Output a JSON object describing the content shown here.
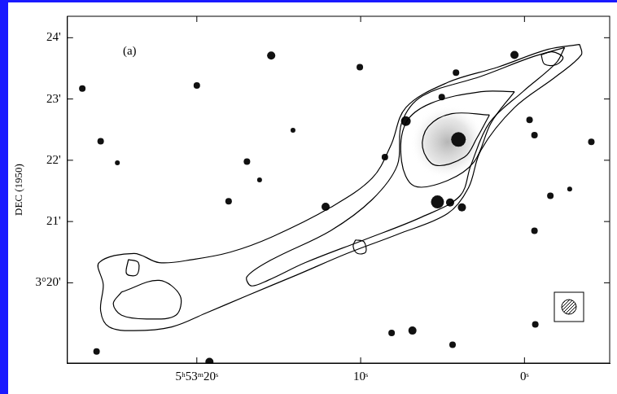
{
  "chart_data": {
    "type": "contour",
    "ylabel": "DEC (1950)",
    "xlim": [
      27.9,
      -5.2
    ],
    "ylim": [
      18.69,
      24.35
    ],
    "xticks": [
      {
        "value": 20,
        "label": "5ʰ53ᵐ20ˢ"
      },
      {
        "value": 10,
        "label": "10ˢ"
      },
      {
        "value": 0,
        "label": "0ˢ"
      }
    ],
    "yticks": [
      {
        "value": 20,
        "label": "3°20'"
      },
      {
        "value": 21,
        "label": "21'"
      },
      {
        "value": 22,
        "label": "22'"
      },
      {
        "value": 23,
        "label": "23'"
      },
      {
        "value": 24,
        "label": "24'"
      }
    ],
    "grid": false,
    "color": "#000000",
    "contours": [
      {
        "x": [
          -3.37,
          -3.47,
          -1.94,
          0.61,
          2.65,
          3.42,
          4.69,
          7.76,
          10.82,
          13.88,
          16.94,
          19.49,
          21.53,
          23.83,
          25.36,
          25.87,
          25.71,
          25.97,
          23.83,
          22.3,
          20.26,
          17.96,
          15.41,
          11.84,
          9.29,
          8.16,
          7.24,
          4.69,
          1.63,
          -1.43
        ],
        "y": [
          23.89,
          23.72,
          23.37,
          22.86,
          22.17,
          21.55,
          21.13,
          20.79,
          20.48,
          20.13,
          19.79,
          19.5,
          19.28,
          19.22,
          19.28,
          19.54,
          19.97,
          20.33,
          20.48,
          20.33,
          20.38,
          20.5,
          20.75,
          21.23,
          21.71,
          22.24,
          22.86,
          23.27,
          23.52,
          23.81
        ]
      },
      {
        "x": [
          -2.45,
          -1.94,
          0.1,
          2.14,
          3.27,
          3.93,
          6.22,
          9.8,
          13.37,
          15.66,
          16.68,
          16.94,
          15.41,
          11.84,
          9.29,
          7.76,
          7.5,
          6.22,
          2.65,
          -0.41
        ],
        "y": [
          23.84,
          23.59,
          23.12,
          22.61,
          21.92,
          21.42,
          21.08,
          20.7,
          20.33,
          20.04,
          19.95,
          20.1,
          20.38,
          20.85,
          21.36,
          21.92,
          22.61,
          23.05,
          23.37,
          23.68
        ]
      },
      {
        "x": [
          0.61,
          2.04,
          3.06,
          4.69,
          6.73,
          7.5,
          7.24,
          5.71,
          2.65
        ],
        "y": [
          23.12,
          22.61,
          21.98,
          21.67,
          21.58,
          21.98,
          22.61,
          22.93,
          23.12
        ]
      },
      {
        "x": [
          2.14,
          2.91,
          3.67,
          5.46,
          6.22,
          5.87,
          4.44
        ],
        "y": [
          22.74,
          22.36,
          22.05,
          21.92,
          22.21,
          22.55,
          22.76
        ]
      },
      {
        "x": [
          -1.02,
          -1.68,
          -2.35,
          -1.94,
          -1.22
        ],
        "y": [
          23.72,
          23.77,
          23.68,
          23.56,
          23.57
        ]
      },
      {
        "x": [
          10.31,
          9.8,
          9.69,
          10.2,
          10.46
        ],
        "y": [
          20.7,
          20.67,
          20.5,
          20.48,
          20.6
        ]
      },
      {
        "x": [
          24.59,
          22.3,
          21.02,
          21.28,
          23.06,
          24.59,
          25.1
        ],
        "y": [
          19.85,
          20.04,
          19.79,
          19.47,
          19.41,
          19.47,
          19.66
        ]
      },
      {
        "x": [
          24.18,
          23.57,
          23.67,
          24.29
        ],
        "y": [
          20.38,
          20.33,
          20.13,
          20.15
        ]
      }
    ],
    "stars": {
      "x": [
        26.99,
        25.87,
        24.85,
        20,
        15.46,
        16.94,
        16.17,
        18.06,
        12.14,
        10.05,
        8.52,
        7.24,
        5.05,
        4.18,
        4.03,
        5.31,
        4.54,
        3.82,
        0.61,
        -0.31,
        -0.61,
        -1.58,
        -0.61,
        -0.66,
        8.11,
        6.84,
        4.39,
        19.23,
        26.12,
        -4.08,
        -2.76,
        14.13
      ],
      "y": [
        23.17,
        22.31,
        21.96,
        23.22,
        23.71,
        21.98,
        21.68,
        21.33,
        21.24,
        23.52,
        22.05,
        22.64,
        23.03,
        23.43,
        22.34,
        21.32,
        21.31,
        21.23,
        23.72,
        22.66,
        22.41,
        21.42,
        20.85,
        19.32,
        19.18,
        19.22,
        18.99,
        18.71,
        18.88,
        22.3,
        21.53,
        22.49
      ],
      "sizes": [
        4,
        4,
        3,
        4,
        5,
        4,
        3,
        4,
        5,
        4,
        4,
        6,
        4,
        4,
        9,
        8,
        5,
        5,
        5,
        4,
        4,
        4,
        4,
        4,
        4,
        5,
        4,
        5,
        4,
        4,
        3,
        3
      ]
    },
    "nebula": {
      "x": 4.69,
      "y": 22.3,
      "radius_x": 2.3,
      "radius_y": 0.6
    },
    "annotations": [
      {
        "text": "(a)",
        "x": 24.1,
        "y": 23.78
      }
    ]
  }
}
